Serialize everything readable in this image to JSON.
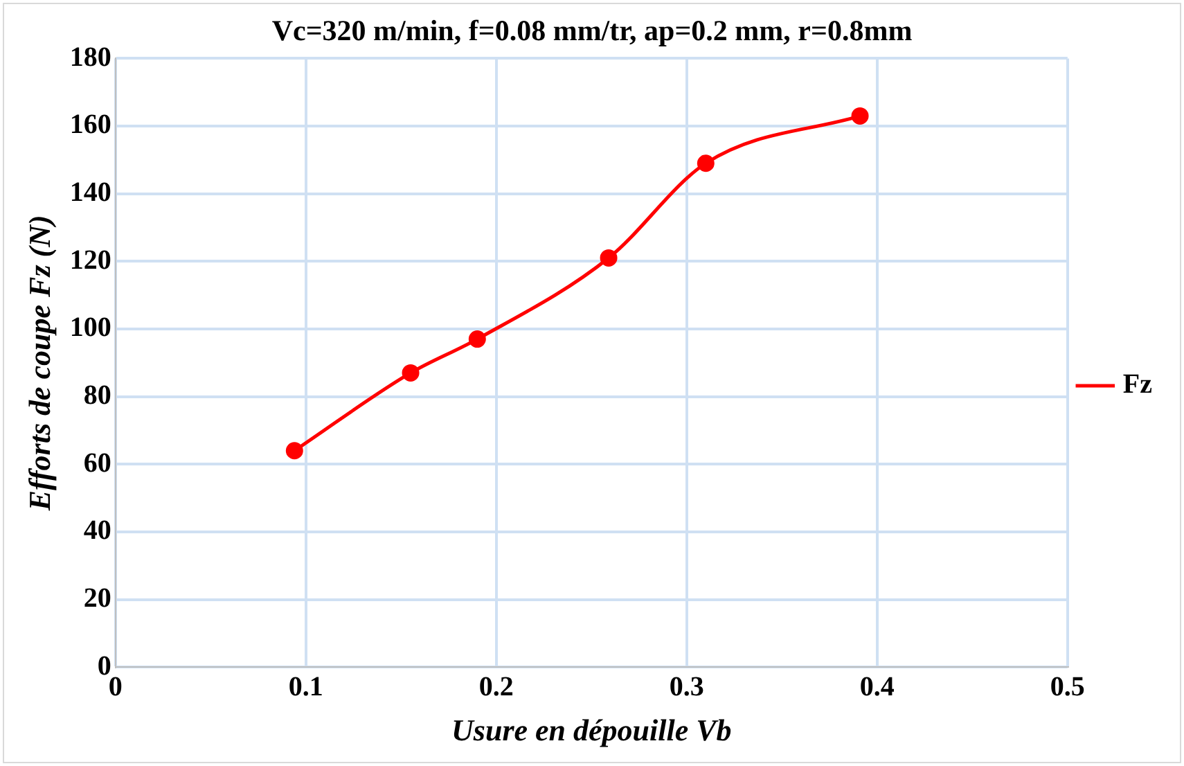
{
  "chart_data": {
    "type": "line",
    "title": "Vc=320 m/min, f=0.08 mm/tr, ap=0.2 mm, r=0.8mm",
    "xlabel": "Usure en dépouille Vb",
    "ylabel": "Efforts de coupe Fz (N)",
    "x": [
      0.094,
      0.155,
      0.19,
      0.259,
      0.31,
      0.391
    ],
    "series": [
      {
        "name": "Fz",
        "color": "#ff0000",
        "values": [
          64,
          87,
          97,
          121,
          149,
          163
        ]
      }
    ],
    "xlim": [
      0,
      0.5
    ],
    "xticks": [
      0,
      0.1,
      0.2,
      0.3,
      0.4,
      0.5
    ],
    "ylim": [
      0,
      180
    ],
    "yticks": [
      0,
      20,
      40,
      60,
      80,
      100,
      120,
      140,
      160,
      180
    ],
    "grid": true,
    "legend": "right",
    "marker": "circle",
    "line_style": "solid"
  }
}
